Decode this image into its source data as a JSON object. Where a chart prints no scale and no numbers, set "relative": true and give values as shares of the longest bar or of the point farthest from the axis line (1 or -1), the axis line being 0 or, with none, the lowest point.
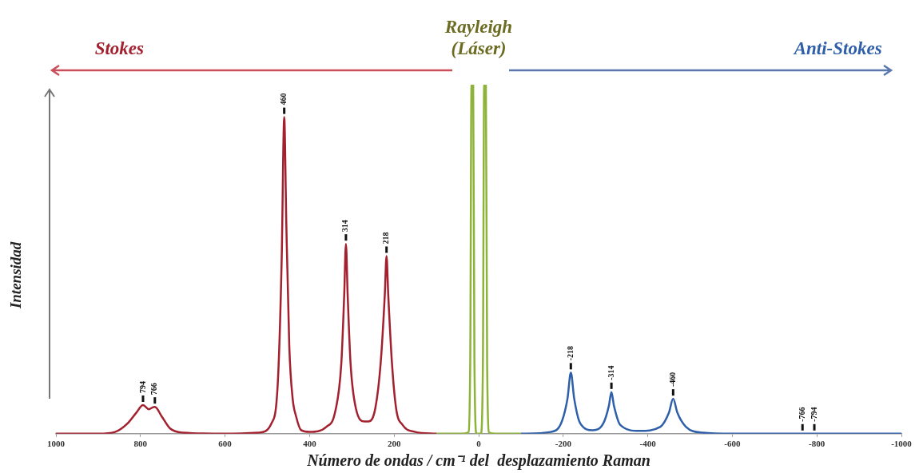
{
  "chart_data": {
    "type": "line",
    "relative": true,
    "xlabel": "Número de ondas / cm⁻¹ del  desplazamiento Raman",
    "ylabel": "Intensidad",
    "xlim": [
      1000,
      -1000
    ],
    "xticks": [
      1000,
      800,
      600,
      400,
      200,
      0,
      -200,
      -400,
      -600,
      -800,
      -1000
    ],
    "grid": false,
    "legend": false,
    "marker": "none",
    "series": [
      {
        "name": "Stokes",
        "color": "#a3202f",
        "x": [
          1000,
          900,
          860,
          830,
          810,
          794,
          780,
          772,
          766,
          750,
          730,
          700,
          600,
          520,
          490,
          475,
          466,
          460,
          455,
          448,
          440,
          432,
          420,
          400,
          360,
          340,
          325,
          318,
          314,
          310,
          303,
          290,
          270,
          260,
          245,
          232,
          222,
          218,
          214,
          205,
          195,
          180,
          150,
          100
        ],
        "values": [
          0,
          0,
          0.005,
          0.03,
          0.06,
          0.082,
          0.07,
          0.075,
          0.077,
          0.05,
          0.015,
          0.003,
          0,
          0.003,
          0.03,
          0.15,
          0.5,
          0.907,
          0.6,
          0.25,
          0.1,
          0.05,
          0.01,
          0.005,
          0.02,
          0.06,
          0.2,
          0.4,
          0.544,
          0.4,
          0.2,
          0.07,
          0.035,
          0.035,
          0.07,
          0.2,
          0.4,
          0.509,
          0.4,
          0.2,
          0.07,
          0.025,
          0.005,
          0
        ]
      },
      {
        "name": "Rayleigh (Láser)",
        "color": "#8db33a",
        "x": [
          100,
          40,
          25,
          20,
          17,
          13,
          10,
          5,
          -5,
          -10,
          -13,
          -17,
          -20,
          -25,
          -40,
          -100
        ],
        "values": [
          0,
          0,
          0.003,
          0.2,
          1,
          1,
          0.2,
          0,
          0,
          0.2,
          1,
          1,
          0.2,
          0.003,
          0,
          0
        ]
      },
      {
        "name": "Anti-Stokes",
        "color": "#2e5fa8",
        "x": [
          -100,
          -170,
          -195,
          -210,
          -218,
          -226,
          -240,
          -270,
          -295,
          -308,
          -314,
          -320,
          -335,
          -380,
          -430,
          -450,
          -460,
          -470,
          -490,
          -530,
          -600,
          -1000
        ],
        "values": [
          0,
          0.005,
          0.03,
          0.1,
          0.175,
          0.1,
          0.03,
          0.01,
          0.03,
          0.08,
          0.119,
          0.08,
          0.025,
          0.008,
          0.02,
          0.06,
          0.1,
          0.06,
          0.02,
          0.003,
          0,
          0
        ]
      }
    ],
    "annotations": [
      {
        "text": "794",
        "x": 794,
        "y": 0.082
      },
      {
        "text": "766",
        "x": 766,
        "y": 0.077
      },
      {
        "text": "460",
        "x": 460,
        "y": 0.907
      },
      {
        "text": "314",
        "x": 314,
        "y": 0.544
      },
      {
        "text": "218",
        "x": 218,
        "y": 0.509
      },
      {
        "text": "-218",
        "x": -218,
        "y": 0.175
      },
      {
        "text": "-314",
        "x": -314,
        "y": 0.119
      },
      {
        "text": "-460",
        "x": -460,
        "y": 0.1
      },
      {
        "text": "-766",
        "x": -766,
        "y": 0
      },
      {
        "text": "-794",
        "x": -794,
        "y": 0
      }
    ]
  }
}
